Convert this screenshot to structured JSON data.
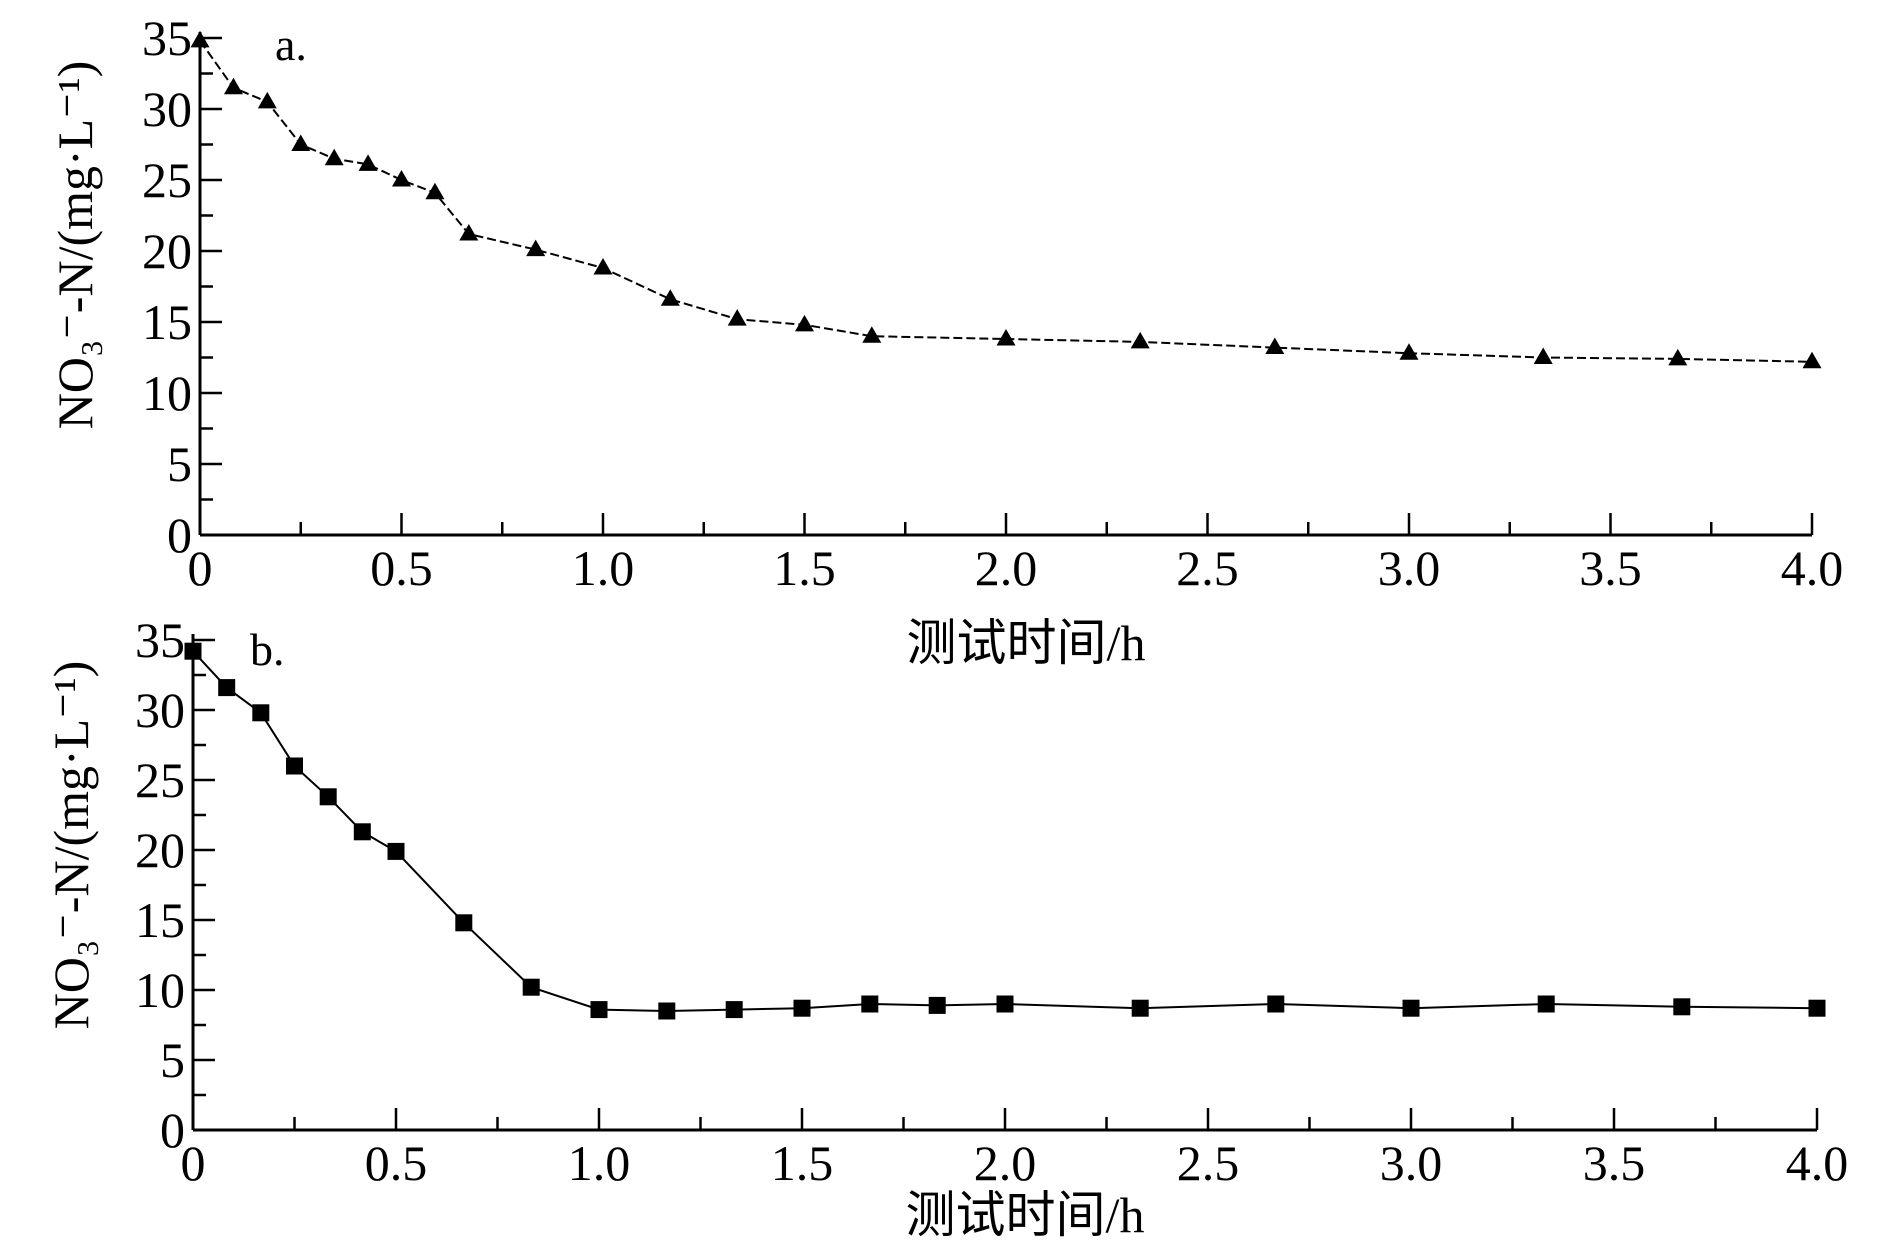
{
  "chart_data": [
    {
      "type": "line",
      "panel_label": "a.",
      "xlabel": "测试时间/h",
      "ylabel": "NO₃⁻-N/(mg·L⁻¹)",
      "xlim": [
        0,
        4.0
      ],
      "ylim": [
        0,
        35
      ],
      "x_ticks": [
        "0",
        "0.5",
        "1.0",
        "1.5",
        "2.0",
        "2.5",
        "3.0",
        "3.5",
        "4.0"
      ],
      "y_ticks": [
        "0",
        "5",
        "10",
        "15",
        "20",
        "25",
        "30",
        "35"
      ],
      "grid": false,
      "marker": "triangle",
      "line_style": "dashed",
      "series": [
        {
          "x": [
            0,
            0.083,
            0.167,
            0.25,
            0.333,
            0.417,
            0.5,
            0.583,
            0.667,
            0.833,
            1.0,
            1.167,
            1.333,
            1.5,
            1.667,
            2.0,
            2.333,
            2.667,
            3.0,
            3.333,
            3.667,
            4.0
          ],
          "y": [
            34.8,
            31.5,
            30.5,
            27.5,
            26.5,
            26.1,
            25.0,
            24.1,
            21.2,
            20.1,
            18.8,
            16.6,
            15.2,
            14.8,
            14.0,
            13.8,
            13.6,
            13.2,
            12.8,
            12.5,
            12.4,
            12.2
          ]
        }
      ]
    },
    {
      "type": "line",
      "panel_label": "b.",
      "xlabel": "测试时间/h",
      "ylabel": "NO₃⁻-N/(mg·L⁻¹)",
      "xlim": [
        0,
        4.0
      ],
      "ylim": [
        0,
        35
      ],
      "x_ticks": [
        "0",
        "0.5",
        "1.0",
        "1.5",
        "2.0",
        "2.5",
        "3.0",
        "3.5",
        "4.0"
      ],
      "y_ticks": [
        "0",
        "5",
        "10",
        "15",
        "20",
        "25",
        "30",
        "35"
      ],
      "grid": false,
      "marker": "square",
      "line_style": "solid",
      "series": [
        {
          "x": [
            0,
            0.083,
            0.167,
            0.25,
            0.333,
            0.417,
            0.5,
            0.667,
            0.833,
            1.0,
            1.167,
            1.333,
            1.5,
            1.667,
            1.833,
            2.0,
            2.333,
            2.667,
            3.0,
            3.333,
            3.667,
            4.0
          ],
          "y": [
            34.2,
            31.6,
            29.8,
            26.0,
            23.8,
            21.3,
            19.9,
            14.8,
            10.2,
            8.6,
            8.5,
            8.6,
            8.7,
            9.0,
            8.9,
            9.0,
            8.7,
            9.0,
            8.7,
            9.0,
            8.8,
            8.7
          ]
        }
      ]
    }
  ]
}
